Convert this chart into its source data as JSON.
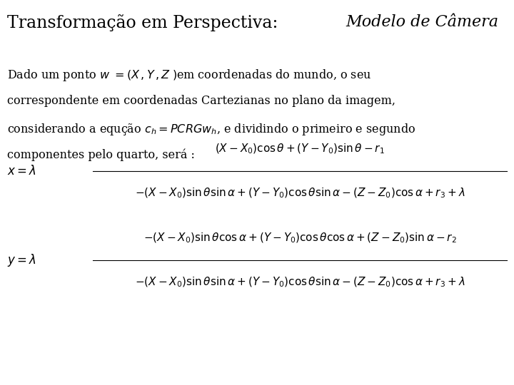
{
  "background_color": "#ffffff",
  "title_fontsize": 17,
  "body_fontsize": 11.5,
  "math_fontsize": 11,
  "para_lines": [
    "Dado um ponto $w\\ =\\left(X\\,,Y\\,,Z\\;\\right)$em coordenadas do mundo, o seu",
    "correspondente em coordenadas Cartezianas no plano da imagem,",
    "considerando a equção $c_{h} = PCRGw_{h}$, e dividindo o primeiro e segundo",
    "componentes pelo quarto, será :"
  ],
  "eq1_lhs": "$x = \\lambda$",
  "eq1_num": "$\\left(X - X_0\\right)\\cos\\theta + \\left(Y - Y_0\\right)\\sin\\theta - r_1$",
  "eq1_den": "$-\\left(X - X_0\\right)\\sin\\theta\\sin\\alpha + \\left(Y - Y_0\\right)\\cos\\theta\\sin\\alpha - \\left(Z - Z_0\\right)\\cos\\alpha + r_3 + \\lambda$",
  "eq2_lhs": "$y = \\lambda$",
  "eq2_num": "$-\\left(X - X_0\\right)\\sin\\theta\\cos\\alpha + \\left(Y - Y_0\\right)\\cos\\theta\\cos\\alpha + \\left(Z - Z_0\\right)\\sin\\alpha - r_2$",
  "eq2_den": "$-\\left(X - X_0\\right)\\sin\\theta\\sin\\alpha + \\left(Y - Y_0\\right)\\cos\\theta\\sin\\alpha - \\left(Z - Z_0\\right)\\cos\\alpha + r_3 + \\lambda$",
  "title_part1": "Transformação em Perspectiva: ",
  "title_part2": "Modelo de Câmera"
}
